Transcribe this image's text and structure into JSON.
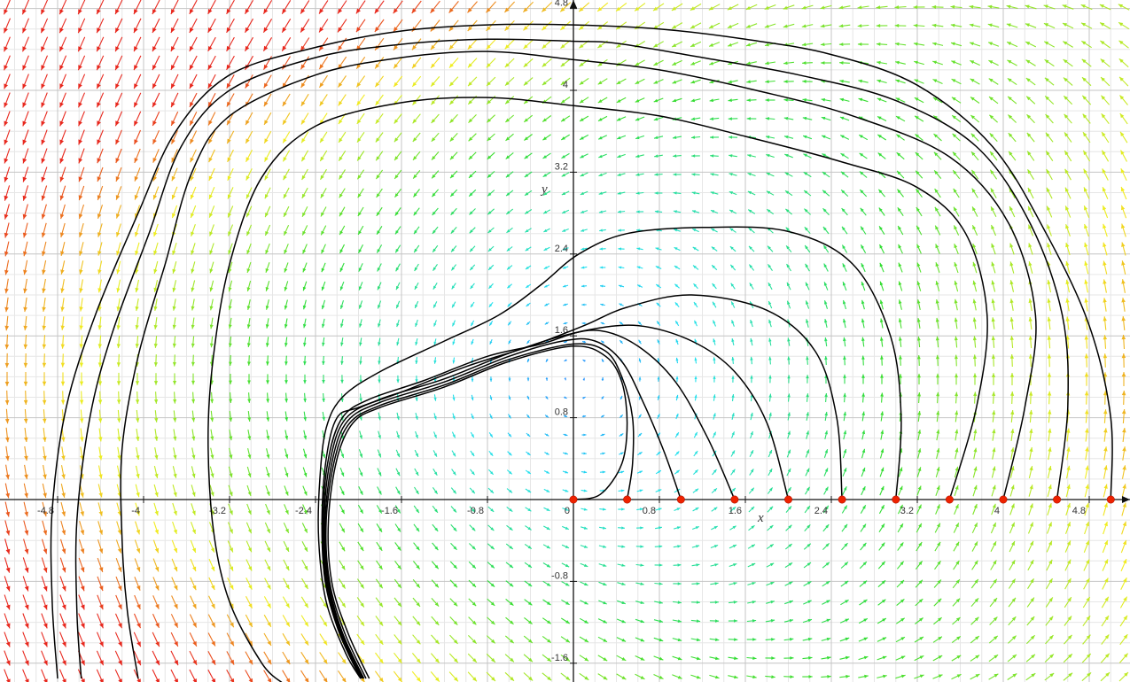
{
  "chart_data": {
    "type": "line",
    "title": "",
    "xlabel": "x",
    "ylabel": "y",
    "xlim": [
      -5.6,
      5.4
    ],
    "ylim": [
      -1.75,
      4.8
    ],
    "grid": true,
    "x_ticks": [
      "-4.8",
      "-4",
      "-3.2",
      "-2.4",
      "-1.6",
      "-0.8",
      "0",
      "0.8",
      "1.6",
      "2.4",
      "3.2",
      "4",
      "4.8"
    ],
    "y_ticks": [
      "4.8",
      "4",
      "3.2",
      "2.4",
      "1.6",
      "0.8",
      "-0.8",
      "-1.6"
    ],
    "vector_field": {
      "description_ref": "direction field",
      "color_low": "#2a8cff",
      "color_mid": "#22e0ee",
      "color_green": "#33dd33",
      "color_yellow": "#f2ee22",
      "color_high": "#e8281e"
    },
    "initial_points": {
      "color": "#ee2200",
      "points": [
        [
          0,
          0
        ],
        [
          0.5,
          0
        ],
        [
          1.0,
          0
        ],
        [
          1.5,
          0
        ],
        [
          2.0,
          0
        ],
        [
          2.5,
          0
        ],
        [
          3.0,
          0
        ],
        [
          3.5,
          0
        ],
        [
          4.0,
          0
        ],
        [
          4.5,
          0
        ],
        [
          5.0,
          0
        ]
      ]
    },
    "series": [
      {
        "values": [
          [
            0,
            0
          ],
          [
            0.25,
            0.05
          ],
          [
            0.45,
            0.35
          ],
          [
            0.5,
            0.75
          ],
          [
            0.45,
            1.15
          ],
          [
            0.3,
            1.4
          ],
          [
            0,
            1.5
          ],
          [
            -0.6,
            1.35
          ],
          [
            -1.2,
            1.1
          ],
          [
            -1.8,
            0.9
          ],
          [
            -2.05,
            0.75
          ],
          [
            -2.2,
            0.4
          ],
          [
            -2.28,
            -0.2
          ],
          [
            -2.25,
            -0.8
          ],
          [
            -2.1,
            -1.3
          ],
          [
            -1.9,
            -1.75
          ]
        ]
      },
      {
        "values": [
          [
            0.5,
            0
          ],
          [
            0.55,
            0.35
          ],
          [
            0.55,
            0.8
          ],
          [
            0.45,
            1.2
          ],
          [
            0.3,
            1.45
          ],
          [
            0,
            1.52
          ],
          [
            -0.6,
            1.37
          ],
          [
            -1.2,
            1.12
          ],
          [
            -1.8,
            0.92
          ],
          [
            -2.08,
            0.75
          ],
          [
            -2.22,
            0.4
          ],
          [
            -2.3,
            -0.2
          ],
          [
            -2.27,
            -0.8
          ],
          [
            -2.13,
            -1.3
          ],
          [
            -1.93,
            -1.75
          ]
        ]
      },
      {
        "values": [
          [
            1.0,
            0
          ],
          [
            0.85,
            0.45
          ],
          [
            0.65,
            0.95
          ],
          [
            0.45,
            1.35
          ],
          [
            0.2,
            1.55
          ],
          [
            -0.1,
            1.55
          ],
          [
            -0.6,
            1.4
          ],
          [
            -1.2,
            1.15
          ],
          [
            -1.8,
            0.95
          ],
          [
            -2.1,
            0.77
          ],
          [
            -2.24,
            0.4
          ],
          [
            -2.31,
            -0.2
          ],
          [
            -2.28,
            -0.8
          ],
          [
            -2.15,
            -1.3
          ],
          [
            -1.95,
            -1.75
          ]
        ]
      },
      {
        "values": [
          [
            1.5,
            0
          ],
          [
            1.25,
            0.6
          ],
          [
            0.95,
            1.15
          ],
          [
            0.6,
            1.5
          ],
          [
            0.25,
            1.65
          ],
          [
            -0.1,
            1.6
          ],
          [
            -0.6,
            1.43
          ],
          [
            -1.2,
            1.18
          ],
          [
            -1.8,
            0.98
          ],
          [
            -2.12,
            0.79
          ],
          [
            -2.26,
            0.4
          ],
          [
            -2.32,
            -0.2
          ],
          [
            -2.29,
            -0.8
          ],
          [
            -2.16,
            -1.3
          ],
          [
            -1.96,
            -1.75
          ]
        ]
      },
      {
        "values": [
          [
            2.0,
            0
          ],
          [
            1.8,
            0.75
          ],
          [
            1.5,
            1.25
          ],
          [
            1.1,
            1.55
          ],
          [
            0.6,
            1.7
          ],
          [
            0.1,
            1.65
          ],
          [
            -0.3,
            1.52
          ],
          [
            -0.8,
            1.4
          ],
          [
            -1.4,
            1.16
          ],
          [
            -1.9,
            0.98
          ],
          [
            -2.15,
            0.8
          ],
          [
            -2.28,
            0.4
          ],
          [
            -2.33,
            -0.2
          ],
          [
            -2.3,
            -0.8
          ],
          [
            -2.17,
            -1.3
          ],
          [
            -1.97,
            -1.75
          ]
        ]
      },
      {
        "values": [
          [
            2.5,
            0
          ],
          [
            2.45,
            0.8
          ],
          [
            2.25,
            1.45
          ],
          [
            1.8,
            1.85
          ],
          [
            1.1,
            2.0
          ],
          [
            0.5,
            1.88
          ],
          [
            0.1,
            1.7
          ],
          [
            -0.4,
            1.5
          ],
          [
            -1.0,
            1.3
          ],
          [
            -1.6,
            1.05
          ],
          [
            -2.0,
            0.9
          ],
          [
            -2.2,
            0.8
          ],
          [
            -2.3,
            0.4
          ],
          [
            -2.34,
            -0.2
          ],
          [
            -2.31,
            -0.8
          ],
          [
            -2.18,
            -1.3
          ],
          [
            -1.98,
            -1.75
          ]
        ]
      },
      {
        "values": [
          [
            3.0,
            0
          ],
          [
            3.05,
            0.8
          ],
          [
            2.95,
            1.6
          ],
          [
            2.6,
            2.3
          ],
          [
            2.0,
            2.62
          ],
          [
            1.2,
            2.66
          ],
          [
            0.5,
            2.6
          ],
          [
            0.05,
            2.4
          ],
          [
            -0.3,
            2.1
          ],
          [
            -0.7,
            1.8
          ],
          [
            -1.2,
            1.55
          ],
          [
            -1.8,
            1.25
          ],
          [
            -2.15,
            1.0
          ],
          [
            -2.3,
            0.7
          ],
          [
            -2.36,
            0.2
          ],
          [
            -2.37,
            -0.4
          ],
          [
            -2.3,
            -1.0
          ],
          [
            -2.12,
            -1.5
          ],
          [
            -1.98,
            -1.75
          ]
        ]
      },
      {
        "values": [
          [
            3.5,
            0
          ],
          [
            3.75,
            0.9
          ],
          [
            3.85,
            1.8
          ],
          [
            3.65,
            2.6
          ],
          [
            3.2,
            3.05
          ],
          [
            2.5,
            3.3
          ],
          [
            1.6,
            3.55
          ],
          [
            0.8,
            3.75
          ],
          [
            0,
            3.85
          ],
          [
            -0.8,
            3.93
          ],
          [
            -1.6,
            3.88
          ],
          [
            -2.4,
            3.65
          ],
          [
            -2.9,
            3.15
          ],
          [
            -3.2,
            2.3
          ],
          [
            -3.35,
            1.4
          ],
          [
            -3.4,
            0.6
          ],
          [
            -3.35,
            -0.3
          ],
          [
            -3.2,
            -1.0
          ],
          [
            -2.9,
            -1.6
          ],
          [
            -2.7,
            -1.8
          ]
        ]
      },
      {
        "values": [
          [
            4.0,
            0
          ],
          [
            4.2,
            0.9
          ],
          [
            4.3,
            1.8
          ],
          [
            4.05,
            2.7
          ],
          [
            3.5,
            3.35
          ],
          [
            2.6,
            3.75
          ],
          [
            1.7,
            4.0
          ],
          [
            0.8,
            4.2
          ],
          [
            0,
            4.3
          ],
          [
            -0.8,
            4.38
          ],
          [
            -1.6,
            4.32
          ],
          [
            -2.4,
            4.15
          ],
          [
            -3.2,
            3.75
          ],
          [
            -3.55,
            3.2
          ],
          [
            -3.8,
            2.3
          ],
          [
            -4.05,
            1.4
          ],
          [
            -4.2,
            0.5
          ],
          [
            -4.2,
            -0.4
          ],
          [
            -4.15,
            -1.1
          ],
          [
            -4.05,
            -1.75
          ]
        ]
      },
      {
        "values": [
          [
            4.5,
            0
          ],
          [
            4.6,
            0.9
          ],
          [
            4.55,
            1.8
          ],
          [
            4.25,
            2.7
          ],
          [
            3.75,
            3.45
          ],
          [
            3.0,
            3.9
          ],
          [
            2.1,
            4.15
          ],
          [
            1.2,
            4.32
          ],
          [
            0.4,
            4.46
          ],
          [
            0,
            4.48
          ],
          [
            -0.8,
            4.5
          ],
          [
            -1.6,
            4.45
          ],
          [
            -2.4,
            4.32
          ],
          [
            -3.2,
            4.0
          ],
          [
            -3.65,
            3.45
          ],
          [
            -3.95,
            2.6
          ],
          [
            -4.3,
            1.6
          ],
          [
            -4.5,
            0.8
          ],
          [
            -4.62,
            -0.2
          ],
          [
            -4.62,
            -1.1
          ],
          [
            -4.58,
            -1.75
          ]
        ]
      },
      {
        "values": [
          [
            5.0,
            0
          ],
          [
            5.0,
            0.8
          ],
          [
            4.8,
            1.7
          ],
          [
            4.4,
            2.6
          ],
          [
            3.9,
            3.45
          ],
          [
            3.2,
            4.05
          ],
          [
            2.4,
            4.35
          ],
          [
            1.6,
            4.5
          ],
          [
            0.8,
            4.6
          ],
          [
            0,
            4.64
          ],
          [
            -0.8,
            4.64
          ],
          [
            -1.6,
            4.58
          ],
          [
            -2.4,
            4.42
          ],
          [
            -3.2,
            4.15
          ],
          [
            -3.7,
            3.6
          ],
          [
            -4.05,
            2.8
          ],
          [
            -4.45,
            1.8
          ],
          [
            -4.72,
            0.9
          ],
          [
            -4.85,
            -0.1
          ],
          [
            -4.85,
            -1.0
          ],
          [
            -4.8,
            -1.75
          ]
        ]
      }
    ]
  }
}
